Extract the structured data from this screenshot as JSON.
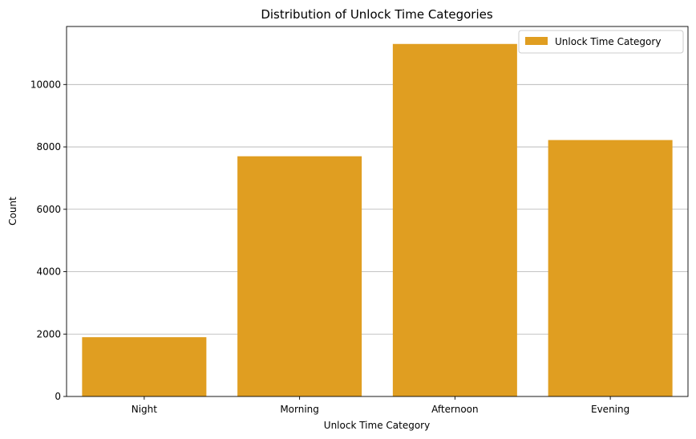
{
  "chart_data": {
    "type": "bar",
    "title": "Distribution of Unlock Time Categories",
    "xlabel": "Unlock Time Category",
    "ylabel": "Count",
    "categories": [
      "Night",
      "Morning",
      "Afternoon",
      "Evening"
    ],
    "series": [
      {
        "name": "Unlock Time Category",
        "values": [
          1900,
          7700,
          11300,
          8220
        ]
      }
    ],
    "ylim": [
      0,
      11860
    ],
    "yticks": [
      0,
      2000,
      4000,
      6000,
      8000,
      10000
    ],
    "grid": "horizontal",
    "legend": "top-right",
    "colors": {
      "bar": "#e09e21",
      "grid": "#b0b0b0",
      "axis": "#000000"
    }
  }
}
